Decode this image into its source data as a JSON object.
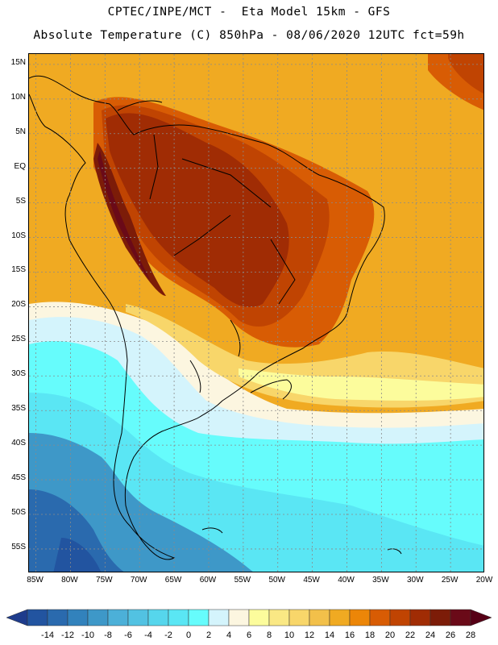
{
  "header": {
    "line1": "CPTEC/INPE/MCT -  Eta Model 15km - GFS",
    "line2": "Absolute Temperature (C) 850hPa - 08/06/2020 12UTC fct=59h"
  },
  "map": {
    "lat_labels": [
      "15N",
      "10N",
      "5N",
      "EQ",
      "5S",
      "10S",
      "15S",
      "20S",
      "25S",
      "30S",
      "35S",
      "40S",
      "45S",
      "50S",
      "55S"
    ],
    "lon_labels": [
      "85W",
      "80W",
      "75W",
      "70W",
      "65W",
      "60W",
      "55W",
      "50W",
      "45W",
      "40W",
      "35W",
      "30W",
      "25W",
      "20W"
    ],
    "lat_range": [
      -58.5,
      16.5
    ],
    "lon_range": [
      -86,
      -20
    ],
    "grid_step_deg": 5,
    "grid": "dotted"
  },
  "legend": {
    "labels": [
      "-14",
      "-12",
      "-10",
      "-8",
      "-6",
      "-4",
      "-2",
      "0",
      "2",
      "4",
      "6",
      "8",
      "10",
      "12",
      "14",
      "16",
      "18",
      "20",
      "22",
      "24",
      "26",
      "28"
    ],
    "colors": [
      "#1e3c8c",
      "#2254a0",
      "#2a6aae",
      "#3282bc",
      "#3e98c8",
      "#4cb0d8",
      "#52c2e2",
      "#56d6ec",
      "#5ae6f4",
      "#66fcfc",
      "#d4f4fc",
      "#fcf6e0",
      "#fcfc9c",
      "#fae884",
      "#f8d66a",
      "#f2c04a",
      "#f0aa22",
      "#ec8608",
      "#d85c04",
      "#c04402",
      "#a02c04",
      "#7c1c08",
      "#6a0a18",
      "#560016"
    ],
    "unit": "C"
  }
}
